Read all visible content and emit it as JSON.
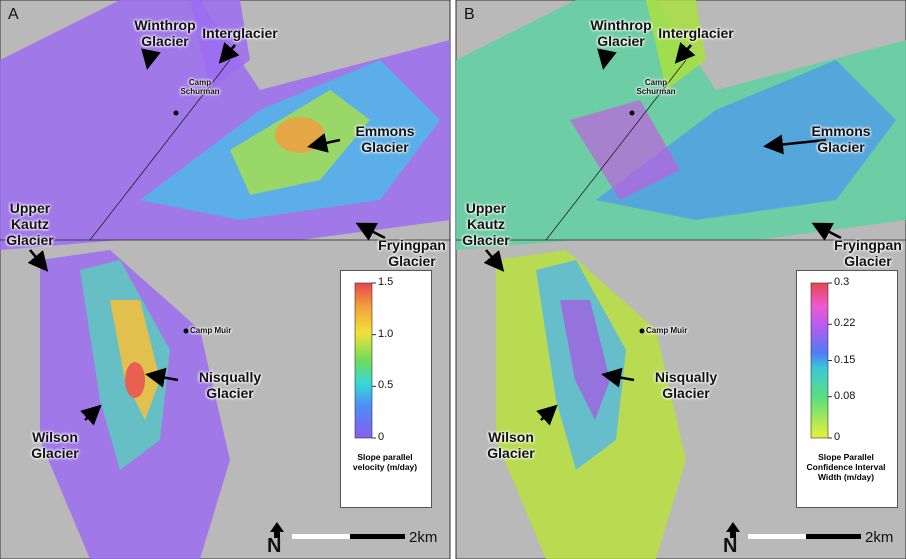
{
  "panels": [
    {
      "letter": "A",
      "labels": [
        "Winthrop Glacier",
        "Interglacier",
        "Camp Schurman",
        "Emmons Glacier",
        "Upper Kautz Glacier",
        "Fryingpan Glacier",
        "Camp Muir",
        "Nisqually Glacier",
        "Wilson Glacier"
      ],
      "colorbar": {
        "title": "Slope parallel velocity (m/day)",
        "lim": [
          0,
          1.5
        ],
        "ticks": [
          0,
          0.5,
          {
            "value": 1,
            "label": "1.0"
          },
          1.5
        ]
      },
      "scale_label": "2km",
      "north": "N"
    },
    {
      "letter": "B",
      "labels": [
        "Winthrop Glacier",
        "Interglacier",
        "Camp Schurman",
        "Emmons Glacier",
        "Upper Kautz Glacier",
        "Fryingpan Glacier",
        "Camp Muir",
        "Nisqually Glacier",
        "Wilson Glacier"
      ],
      "colorbar": {
        "title": "Slope Parallel Confidence Interval Width (m/day)",
        "lim": [
          0,
          0.3
        ],
        "ticks": [
          0,
          0.08,
          0.15,
          0.22,
          0.3
        ]
      },
      "scale_label": "2km",
      "north": "N"
    }
  ]
}
